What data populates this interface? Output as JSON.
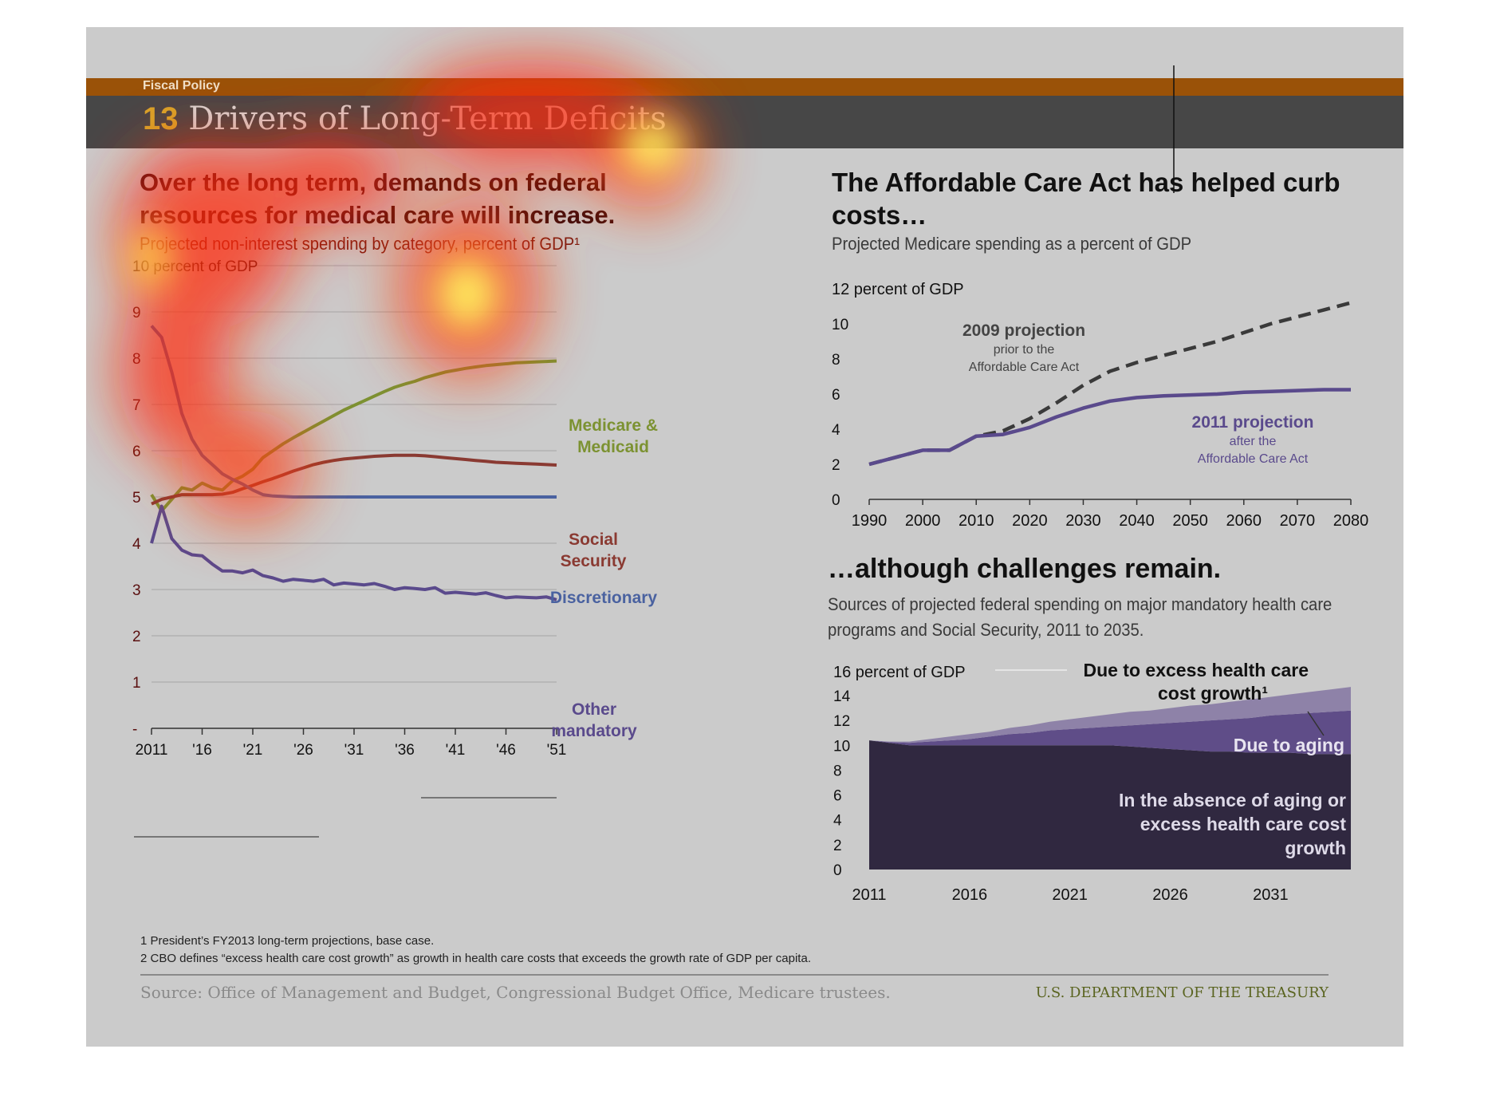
{
  "header": {
    "section": "Fiscal Policy",
    "number": "13",
    "title": "Drivers of Long-Term Deficits"
  },
  "left": {
    "headline": "Over the long term, demands on federal resources for medical care will increase.",
    "subtitle": "Projected non-interest spending by category, percent of GDP¹"
  },
  "right_top": {
    "headline": "The Affordable Care Act has helped curb costs…",
    "subtitle": "Projected Medicare spending as a percent of GDP"
  },
  "right_bottom": {
    "headline": "…although challenges remain.",
    "subtitle": "Sources of projected federal spending on major mandatory health care programs and Social Security, 2011 to 2035."
  },
  "footnotes": [
    "1 President’s FY2013 long-term projections, base case.",
    "2 CBO defines “excess health care cost growth” as growth in health care costs that exceeds the growth rate of GDP per capita."
  ],
  "source": "Source: Office of Management and Budget, Congressional Budget Office, Medicare trustees.",
  "organization": "U.S. DEPARTMENT OF THE TREASURY",
  "colors": {
    "medicare": "#7c9232",
    "social_security": "#8a3a32",
    "discretionary": "#4a62a0",
    "other_mandatory": "#5a4a8c",
    "proj2009": "#3a3a3a",
    "proj2011": "#5a4a8c",
    "area_base": "#302840",
    "area_aging": "#5f4d88",
    "area_excess": "#8e82a8"
  },
  "chart_data": [
    {
      "type": "line",
      "ylabel": "10 percent of GDP",
      "ylim": [
        0,
        10
      ],
      "y_tick_labels": [
        "-",
        "1",
        "2",
        "3",
        "4",
        "5",
        "6",
        "7",
        "8",
        "9"
      ],
      "x_tick_labels": [
        "2011",
        "'16",
        "'21",
        "'26",
        "'31",
        "'36",
        "'41",
        "'46",
        "'51"
      ],
      "x": [
        2011,
        2012,
        2013,
        2014,
        2015,
        2016,
        2017,
        2018,
        2019,
        2020,
        2021,
        2022,
        2023,
        2024,
        2025,
        2026,
        2027,
        2028,
        2029,
        2030,
        2031,
        2032,
        2033,
        2034,
        2035,
        2036,
        2037,
        2038,
        2039,
        2040,
        2041,
        2042,
        2043,
        2044,
        2045,
        2046,
        2047,
        2048,
        2049,
        2050,
        2051
      ],
      "series": [
        {
          "name": "Medicare & Medicaid",
          "key": "medicare",
          "values": [
            5.05,
            4.7,
            4.95,
            5.2,
            5.15,
            5.3,
            5.2,
            5.15,
            5.35,
            5.45,
            5.6,
            5.85,
            6.0,
            6.15,
            6.28,
            6.4,
            6.52,
            6.64,
            6.76,
            6.88,
            6.98,
            7.08,
            7.18,
            7.28,
            7.37,
            7.44,
            7.5,
            7.58,
            7.64,
            7.7,
            7.74,
            7.78,
            7.81,
            7.84,
            7.86,
            7.88,
            7.9,
            7.91,
            7.92,
            7.93,
            7.94
          ]
        },
        {
          "name": "Social Security",
          "key": "social_security",
          "values": [
            4.85,
            4.95,
            5.0,
            5.05,
            5.05,
            5.05,
            5.05,
            5.06,
            5.1,
            5.18,
            5.25,
            5.33,
            5.4,
            5.48,
            5.56,
            5.63,
            5.7,
            5.75,
            5.79,
            5.82,
            5.84,
            5.86,
            5.88,
            5.89,
            5.9,
            5.9,
            5.9,
            5.89,
            5.87,
            5.85,
            5.83,
            5.81,
            5.79,
            5.77,
            5.75,
            5.74,
            5.73,
            5.72,
            5.71,
            5.7,
            5.69
          ]
        },
        {
          "name": "Discretionary",
          "key": "discretionary",
          "values": [
            8.7,
            8.45,
            7.7,
            6.8,
            6.25,
            5.9,
            5.7,
            5.5,
            5.38,
            5.28,
            5.15,
            5.05,
            5.02,
            5.01,
            5.0,
            5.0,
            5.0,
            5.0,
            5.0,
            5.0,
            5.0,
            5.0,
            5.0,
            5.0,
            5.0,
            5.0,
            5.0,
            5.0,
            5.0,
            5.0,
            5.0,
            5.0,
            5.0,
            5.0,
            5.0,
            5.0,
            5.0,
            5.0,
            5.0,
            5.0,
            5.0
          ]
        },
        {
          "name": "Other mandatory",
          "key": "other_mandatory",
          "values": [
            4.0,
            4.8,
            4.1,
            3.85,
            3.75,
            3.73,
            3.55,
            3.4,
            3.4,
            3.36,
            3.42,
            3.3,
            3.25,
            3.18,
            3.22,
            3.2,
            3.18,
            3.22,
            3.1,
            3.14,
            3.12,
            3.1,
            3.13,
            3.07,
            3.0,
            3.04,
            3.02,
            3.0,
            3.04,
            2.92,
            2.94,
            2.92,
            2.9,
            2.93,
            2.87,
            2.82,
            2.84,
            2.83,
            2.82,
            2.84,
            2.78
          ]
        }
      ],
      "series_labels": {
        "medicare": [
          "Medicare &",
          "Medicaid"
        ],
        "social_security": [
          "Social",
          "Security"
        ],
        "discretionary": [
          "Discretionary"
        ],
        "other_mandatory": [
          "Other",
          "mandatory"
        ]
      }
    },
    {
      "type": "line",
      "ylabel": "12 percent of GDP",
      "ylim": [
        0,
        12
      ],
      "y_tick_labels": [
        "0",
        "2",
        "4",
        "6",
        "8",
        "10"
      ],
      "x_tick_labels": [
        "1990",
        "2000",
        "2010",
        "2020",
        "2030",
        "2040",
        "2050",
        "2060",
        "2070",
        "2080"
      ],
      "xlim": [
        1990,
        2080
      ],
      "series": [
        {
          "name": "2009 projection",
          "key": "proj2009",
          "x": [
            1990,
            1995,
            2000,
            2005,
            2010,
            2015,
            2020,
            2025,
            2030,
            2035,
            2040,
            2045,
            2050,
            2055,
            2060,
            2065,
            2070,
            2075,
            2080
          ],
          "values": [
            2.0,
            2.4,
            2.8,
            2.8,
            3.6,
            3.9,
            4.6,
            5.5,
            6.5,
            7.3,
            7.8,
            8.2,
            8.6,
            9.0,
            9.5,
            10.0,
            10.4,
            10.8,
            11.2
          ]
        },
        {
          "name": "2011 projection",
          "key": "proj2011",
          "x": [
            1990,
            1995,
            2000,
            2005,
            2010,
            2015,
            2020,
            2025,
            2030,
            2035,
            2040,
            2045,
            2050,
            2055,
            2060,
            2065,
            2070,
            2075,
            2080
          ],
          "values": [
            2.0,
            2.4,
            2.8,
            2.8,
            3.6,
            3.7,
            4.1,
            4.7,
            5.2,
            5.6,
            5.8,
            5.9,
            5.95,
            6.0,
            6.1,
            6.15,
            6.2,
            6.25,
            6.25
          ]
        }
      ],
      "series_labels": {
        "proj2009": [
          "2009 projection",
          "prior to the",
          "Affordable Care Act"
        ],
        "proj2011": [
          "2011 projection",
          "after the",
          "Affordable Care Act"
        ]
      }
    },
    {
      "type": "area",
      "stacked": true,
      "ylabel": "16 percent of GDP",
      "ylim": [
        0,
        16
      ],
      "y_tick_labels": [
        "0",
        "2",
        "4",
        "6",
        "8",
        "10",
        "12",
        "14"
      ],
      "x_tick_labels": [
        "2011",
        "2016",
        "2021",
        "2026",
        "2031"
      ],
      "xlim": [
        2011,
        2035
      ],
      "x": [
        2011,
        2012,
        2013,
        2014,
        2015,
        2016,
        2017,
        2018,
        2019,
        2020,
        2021,
        2022,
        2023,
        2024,
        2025,
        2026,
        2027,
        2028,
        2029,
        2030,
        2031,
        2032,
        2033,
        2034,
        2035
      ],
      "series": [
        {
          "name": "In the absence of aging or excess health care cost growth",
          "key": "area_base",
          "values": [
            10.4,
            10.2,
            10.0,
            10.0,
            10.0,
            10.0,
            10.0,
            10.0,
            10.0,
            10.0,
            10.0,
            10.0,
            10.0,
            9.9,
            9.8,
            9.7,
            9.6,
            9.5,
            9.5,
            9.4,
            9.4,
            9.4,
            9.3,
            9.3,
            9.3
          ]
        },
        {
          "name": "Due to aging",
          "key": "area_aging",
          "values": [
            0.0,
            0.05,
            0.2,
            0.3,
            0.4,
            0.5,
            0.7,
            0.9,
            1.0,
            1.2,
            1.3,
            1.4,
            1.5,
            1.7,
            1.9,
            2.1,
            2.3,
            2.5,
            2.6,
            2.8,
            3.0,
            3.1,
            3.3,
            3.4,
            3.5
          ]
        },
        {
          "name": "Due to excess health care cost growth¹",
          "key": "area_excess",
          "values": [
            0.0,
            0.05,
            0.1,
            0.2,
            0.3,
            0.4,
            0.4,
            0.5,
            0.6,
            0.7,
            0.8,
            0.9,
            1.0,
            1.1,
            1.1,
            1.2,
            1.3,
            1.3,
            1.4,
            1.5,
            1.5,
            1.6,
            1.7,
            1.8,
            1.9
          ]
        }
      ],
      "series_labels": {
        "area_base": [
          "In the absence of aging or",
          "excess health care cost",
          "growth"
        ],
        "area_aging": [
          "Due to aging"
        ],
        "area_excess": [
          "Due to excess  health care",
          "cost growth¹"
        ]
      }
    }
  ]
}
